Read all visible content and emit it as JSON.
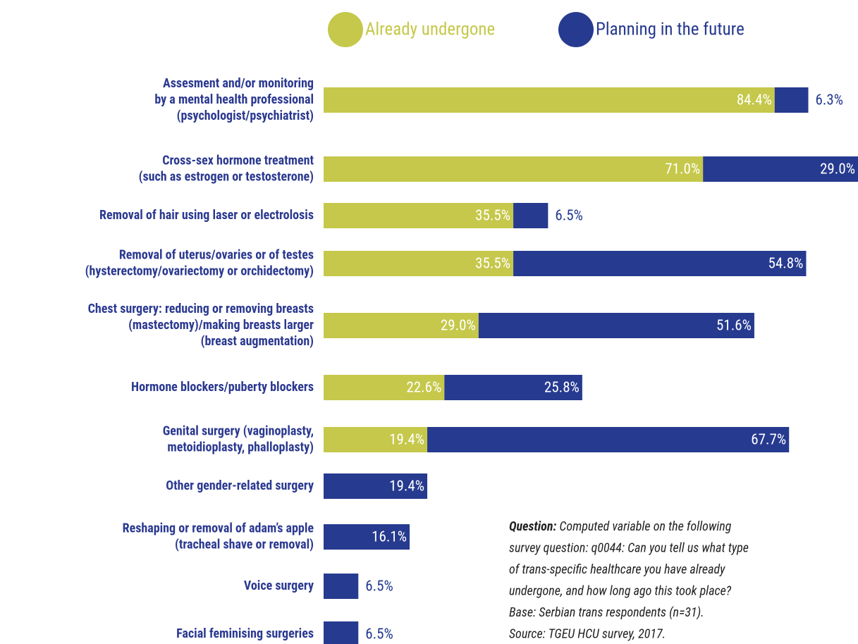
{
  "chart_data": {
    "type": "stacked-bar-horizontal",
    "categories": [
      [
        "Assesment and/or monitoring",
        "by a mental health professional",
        "(psychologist/psychiatrist)"
      ],
      [
        "Cross-sex hormone treatment",
        "(such as estrogen or testosterone)"
      ],
      [
        "Removal of hair using laser or electrolosis"
      ],
      [
        "Removal of uterus/ovaries or of testes",
        "(hysterectomy/ovariectomy or orchidectomy)"
      ],
      [
        "Chest surgery: reducing or removing breasts",
        "(mastectomy)/making breasts larger",
        "(breast augmentation)"
      ],
      [
        "Hormone blockers/puberty blockers"
      ],
      [
        "Genital surgery (vaginoplasty,",
        "metoidioplasty, phalloplasty)"
      ],
      [
        "Other gender-related surgery"
      ],
      [
        "Reshaping or removal of adam’s apple",
        "(tracheal shave or removal)"
      ],
      [
        "Voice surgery"
      ],
      [
        "Facial feminising surgeries"
      ]
    ],
    "series": [
      {
        "name": "Already undergone",
        "color": "#c5c84a",
        "values": [
          84.4,
          71.0,
          35.5,
          35.5,
          29.0,
          22.6,
          19.4,
          null,
          null,
          null,
          null
        ],
        "value_labels": [
          "84.4%",
          "71.0%",
          "35.5%",
          "35.5%",
          "29.0%",
          "22.6%",
          "19.4%",
          null,
          null,
          null,
          null
        ]
      },
      {
        "name": "Planning in the future",
        "color": "#263a8f",
        "values": [
          6.3,
          29.0,
          6.5,
          54.8,
          51.6,
          25.8,
          67.7,
          19.4,
          16.1,
          6.5,
          6.5
        ],
        "value_labels": [
          "6.3%",
          "29.0%",
          "6.5%",
          "54.8%",
          "51.6%",
          "25.8%",
          "67.7%",
          "19.4%",
          "16.1%",
          "6.5%",
          "6.5%"
        ]
      }
    ],
    "xlim": [
      0,
      100
    ],
    "note": {
      "label": "Question:",
      "lines": [
        "Computed variable on the following",
        "survey question: q0044: Can you tell us what type",
        "of trans-specific healthcare you have already",
        "undergone, and how long ago this took place?",
        "Base: Serbian trans respondents (n=31).",
        "Source: TGEU HCU survey, 2017."
      ]
    }
  }
}
